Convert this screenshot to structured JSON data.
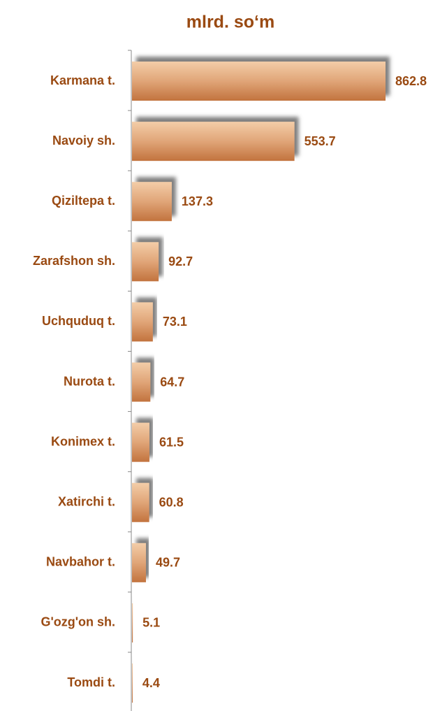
{
  "chart_data": {
    "type": "bar",
    "orientation": "horizontal",
    "title": "mlrd. so‘m",
    "categories": [
      "Karmana t.",
      "Navoiy sh.",
      "Qiziltepa t.",
      "Zarafshon sh.",
      "Uchquduq t.",
      "Nurota t.",
      "Konimex t.",
      "Xatirchi t.",
      "Navbahor t.",
      "G'ozg'on sh.",
      "Tomdi t."
    ],
    "values": [
      862.8,
      553.7,
      137.3,
      92.7,
      73.1,
      64.7,
      61.5,
      60.8,
      49.7,
      5.1,
      4.4
    ],
    "color": "#d48c58"
  }
}
